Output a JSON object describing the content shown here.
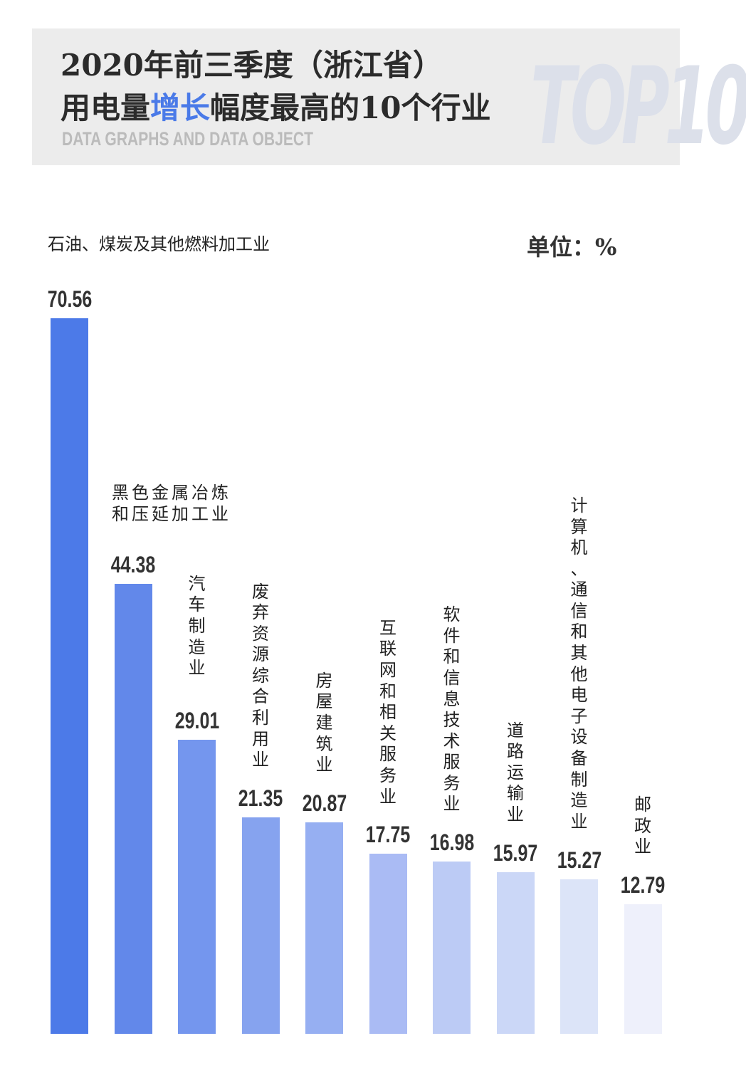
{
  "header": {
    "title_line1": "2020年前三季度（浙江省）",
    "title_line2_pre": "用电量",
    "title_line2_hl": "增长",
    "title_line2_post": "幅度最高的10个行业",
    "subtitle": "DATA GRAPHS AND DATA OBJECT",
    "watermark": "TOP10",
    "accent": "#4a7ae8"
  },
  "unit_label": "单位：%",
  "chart_data": {
    "type": "bar",
    "categories": [
      "石油、煤炭及其他燃料加工业",
      "黑色金属冶炼和压延加工业",
      "汽车制造业",
      "废弃资源综合利用业",
      "房屋建筑业",
      "互联网和相关服务业",
      "软件和信息技术服务业",
      "道路运输业",
      "计算机、通信和其他电子设备制造业",
      "邮政业"
    ],
    "values": [
      70.56,
      44.38,
      29.01,
      21.35,
      20.87,
      17.75,
      16.98,
      15.97,
      15.27,
      12.79
    ],
    "value_labels": [
      "70.56",
      "44.38",
      "29.01",
      "21.35",
      "20.87",
      "17.75",
      "16.98",
      "15.97",
      "15.27",
      "12.79"
    ],
    "colors": [
      "#4c7ae8",
      "#6288ea",
      "#7496ee",
      "#86a3ef",
      "#96aff2",
      "#aabbf4",
      "#bccbf5",
      "#cbd7f7",
      "#dce4f8",
      "#eef0fb"
    ],
    "ylim": [
      0,
      70.56
    ],
    "grid": false,
    "unit": "%"
  }
}
